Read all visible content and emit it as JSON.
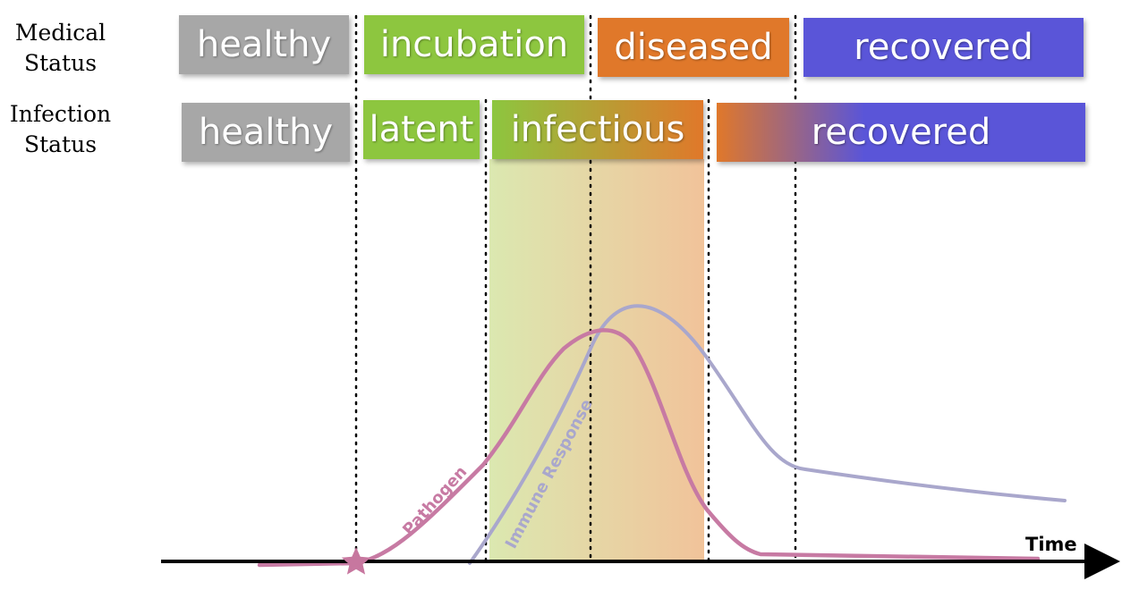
{
  "rows": {
    "medical": {
      "label": "Medical\nStatus",
      "stages": [
        {
          "name": "healthy",
          "color": "#a7a7a7"
        },
        {
          "name": "incubation",
          "color": "#8dc63f"
        },
        {
          "name": "diseased",
          "color": "#e0782a"
        },
        {
          "name": "recovered",
          "color": "#5a55d8"
        }
      ]
    },
    "infection": {
      "label": "Infection\nStatus",
      "stages": [
        {
          "name": "healthy",
          "color": "#a7a7a7"
        },
        {
          "name": "latent",
          "color": "#8dc63f"
        },
        {
          "name": "infectious",
          "color": "#b5a23a"
        },
        {
          "name": "recovered",
          "color": "#5a55d8"
        }
      ]
    }
  },
  "curves": {
    "pathogen": {
      "label": "Pathogen",
      "color": "#c77aa3"
    },
    "immune": {
      "label": "Immune Response",
      "color": "#a9a7cc"
    }
  },
  "axis": {
    "label": "Time"
  },
  "colors": {
    "infectious_band_start": "#dbe8b0",
    "infectious_band_end": "#f1c39a",
    "star": "#c7779f"
  }
}
